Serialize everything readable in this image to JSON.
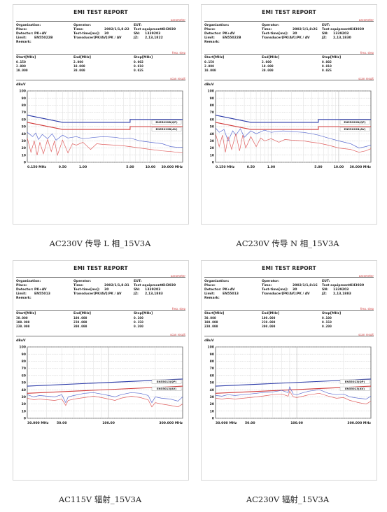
{
  "reports": [
    {
      "title": "EMI TEST REPORT",
      "tags": {
        "parameter": "parameter",
        "freq_step": "freq. step",
        "scan_result": "scan result"
      },
      "labels": {
        "organization": "Organization:",
        "operator": "Operator:",
        "eut": "EUT:",
        "place": "Place:",
        "time": "Time:",
        "test_equipment": "Test equipment:",
        "detector": "Detector:",
        "test_time": "Test-time[ms]:",
        "sn": "SN:",
        "limit": "Limit:",
        "transducer": "Transducer[PK/AV]:",
        "jz": "JZ:",
        "remark": "Remark:",
        "start": "Start[MHz]",
        "end": "End[MHz]",
        "step": "Step[MHz]",
        "unit": "dBuV"
      },
      "values": {
        "time": "2002/1/1,8:22",
        "test_equipment": "KH3939",
        "detector": "PK+AV",
        "test_time": "30",
        "sn": "1339203",
        "limit": "EN55022B",
        "transducer": "PK / AV",
        "jz": "2,13,1822"
      },
      "freq_table": [
        [
          "0.150",
          "2.000",
          "0.002"
        ],
        [
          "2.000",
          "10.000",
          "0.010"
        ],
        [
          "10.000",
          "30.000",
          "0.025"
        ]
      ],
      "chart_data": {
        "type": "line",
        "log_x": true,
        "x_range": [
          0.15,
          30
        ],
        "ylim": [
          0,
          100
        ],
        "y_ticks": [
          "100",
          "90",
          "80",
          "70",
          "60",
          "50",
          "40",
          "30",
          "20",
          "10",
          "0"
        ],
        "x_labels": [
          {
            "x": 0.15,
            "text": "0.150 MHz"
          },
          {
            "x": 0.5,
            "text": "0.50"
          },
          {
            "x": 1,
            "text": "1.00"
          },
          {
            "x": 5,
            "text": "5.00"
          },
          {
            "x": 10,
            "text": "10.00"
          },
          {
            "x": 30,
            "text": "30.000 MHz"
          }
        ],
        "legend": [
          "EN55022B(QP)",
          "EN55022B(AV)"
        ],
        "series": [
          {
            "role": "limit-qp",
            "color": "#2b3aa8",
            "x": [
              0.15,
              0.5,
              5,
              5,
              30
            ],
            "y": [
              66,
              56,
              56,
              60,
              60
            ]
          },
          {
            "role": "limit-av",
            "color": "#d23b3b",
            "x": [
              0.15,
              0.5,
              5,
              5,
              30
            ],
            "y": [
              56,
              46,
              46,
              50,
              50
            ]
          },
          {
            "role": "pk",
            "color": "#5a6ad0",
            "x": [
              0.15,
              0.18,
              0.2,
              0.22,
              0.25,
              0.3,
              0.35,
              0.4,
              0.5,
              0.6,
              0.8,
              1,
              1.5,
              2,
              3,
              4,
              5,
              7,
              10,
              15,
              20,
              25,
              30
            ],
            "y": [
              42,
              36,
              41,
              32,
              39,
              33,
              40,
              31,
              38,
              34,
              36,
              33,
              35,
              36,
              35,
              33,
              34,
              30,
              28,
              26,
              22,
              21,
              21
            ]
          },
          {
            "role": "av",
            "color": "#e06060",
            "x": [
              0.15,
              0.17,
              0.19,
              0.21,
              0.23,
              0.26,
              0.3,
              0.34,
              0.38,
              0.42,
              0.5,
              0.6,
              0.7,
              0.8,
              1,
              1.3,
              1.6,
              2,
              3,
              4,
              5,
              7,
              10,
              15,
              20,
              25,
              30
            ],
            "y": [
              34,
              14,
              30,
              10,
              28,
              12,
              32,
              15,
              30,
              10,
              31,
              13,
              26,
              24,
              28,
              18,
              26,
              25,
              24,
              23,
              22,
              20,
              18,
              16,
              15,
              14,
              13
            ]
          }
        ]
      }
    },
    {
      "title": "EMI TEST REPORT",
      "tags": {
        "parameter": "parameter",
        "freq_step": "freq. step",
        "scan_result": "scan result"
      },
      "labels": {
        "organization": "Organization:",
        "operator": "Operator:",
        "eut": "EUT:",
        "place": "Place:",
        "time": "Time:",
        "test_equipment": "Test equipment:",
        "detector": "Detector:",
        "test_time": "Test-time[ms]:",
        "sn": "SN:",
        "limit": "Limit:",
        "transducer": "Transducer[PK/AV]:",
        "jz": "JZ:",
        "remark": "Remark:",
        "start": "Start[MHz]",
        "end": "End[MHz]",
        "step": "Step[MHz]",
        "unit": "dBuV"
      },
      "values": {
        "time": "2002/1/1,8:26",
        "test_equipment": "KH3939",
        "detector": "PK+AV",
        "test_time": "30",
        "sn": "1339203",
        "limit": "EN55022B",
        "transducer": "PK / AV",
        "jz": "2,13,1830"
      },
      "freq_table": [
        [
          "0.150",
          "2.000",
          "0.002"
        ],
        [
          "2.000",
          "10.000",
          "0.010"
        ],
        [
          "10.000",
          "30.000",
          "0.025"
        ]
      ],
      "chart_data": {
        "type": "line",
        "log_x": true,
        "x_range": [
          0.15,
          30
        ],
        "ylim": [
          0,
          100
        ],
        "y_ticks": [
          "100",
          "90",
          "80",
          "70",
          "60",
          "50",
          "40",
          "30",
          "20",
          "10",
          "0"
        ],
        "x_labels": [
          {
            "x": 0.15,
            "text": "0.150 MHz"
          },
          {
            "x": 0.5,
            "text": "0.50"
          },
          {
            "x": 1,
            "text": "1.00"
          },
          {
            "x": 5,
            "text": "5.00"
          },
          {
            "x": 10,
            "text": "10.00"
          },
          {
            "x": 30,
            "text": "30.000 MHz"
          }
        ],
        "legend": [
          "EN55022B(QP)",
          "EN55022B(AV)"
        ],
        "series": [
          {
            "role": "limit-qp",
            "color": "#2b3aa8",
            "x": [
              0.15,
              0.5,
              5,
              5,
              30
            ],
            "y": [
              66,
              56,
              56,
              60,
              60
            ]
          },
          {
            "role": "limit-av",
            "color": "#d23b3b",
            "x": [
              0.15,
              0.5,
              5,
              5,
              30
            ],
            "y": [
              56,
              46,
              46,
              50,
              50
            ]
          },
          {
            "role": "pk",
            "color": "#5a6ad0",
            "x": [
              0.15,
              0.17,
              0.2,
              0.23,
              0.27,
              0.3,
              0.35,
              0.4,
              0.5,
              0.6,
              0.8,
              1,
              1.5,
              2,
              3,
              4,
              5,
              7,
              10,
              15,
              20,
              25,
              30
            ],
            "y": [
              48,
              42,
              46,
              30,
              44,
              38,
              47,
              35,
              44,
              40,
              45,
              42,
              44,
              43,
              42,
              40,
              38,
              34,
              30,
              26,
              20,
              22,
              24
            ]
          },
          {
            "role": "av",
            "color": "#e06060",
            "x": [
              0.15,
              0.17,
              0.19,
              0.21,
              0.23,
              0.26,
              0.3,
              0.34,
              0.38,
              0.42,
              0.5,
              0.6,
              0.7,
              0.8,
              1,
              1.3,
              1.6,
              2,
              3,
              4,
              5,
              7,
              10,
              15,
              20,
              25,
              30
            ],
            "y": [
              40,
              22,
              38,
              14,
              36,
              18,
              40,
              16,
              38,
              20,
              36,
              22,
              34,
              30,
              33,
              28,
              32,
              31,
              30,
              28,
              27,
              24,
              20,
              18,
              14,
              16,
              19
            ]
          }
        ]
      }
    },
    {
      "title": "EMI TEST REPORT",
      "tags": {
        "parameter": "parameter",
        "freq_step": "freq. step",
        "scan_result": "scan result"
      },
      "labels": {
        "organization": "Organization:",
        "operator": "Operator:",
        "eut": "EUT:",
        "place": "Place:",
        "time": "Time:",
        "test_equipment": "Test equipment:",
        "detector": "Detector:",
        "test_time": "Test-time[ms]:",
        "sn": "SN:",
        "limit": "Limit:",
        "transducer": "Transducer[PK/AV]:",
        "jz": "JZ:",
        "remark": "Remark:",
        "start": "Start[MHz]",
        "end": "End[MHz]",
        "step": "Step[MHz]",
        "unit": "dBuV"
      },
      "values": {
        "time": "2002/1/1,8:31",
        "test_equipment": "KH3939",
        "detector": "PK+AV",
        "test_time": "30",
        "sn": "1339203",
        "limit": "EN55013",
        "transducer": "PK / AV",
        "jz": "2,13,1883"
      },
      "freq_table": [
        [
          "30.000",
          "100.000",
          "0.100"
        ],
        [
          "100.000",
          "230.000",
          "0.150"
        ],
        [
          "230.000",
          "300.000",
          "0.200"
        ]
      ],
      "chart_data": {
        "type": "line",
        "log_x": true,
        "x_range": [
          30,
          300
        ],
        "ylim": [
          0,
          100
        ],
        "y_ticks": [
          "100",
          "90",
          "80",
          "70",
          "60",
          "50",
          "40",
          "30",
          "20",
          "10",
          "0"
        ],
        "x_labels": [
          {
            "x": 30,
            "text": "30.000 MHz"
          },
          {
            "x": 50,
            "text": "50.00"
          },
          {
            "x": 100,
            "text": "100.00"
          },
          {
            "x": 300,
            "text": "300.000 MHz"
          }
        ],
        "legend": [
          "EN55013(QP)",
          "EN55013(AV)"
        ],
        "series": [
          {
            "role": "limit-qp",
            "color": "#2b3aa8",
            "x": [
              30,
              300
            ],
            "y": [
              45,
              55
            ]
          },
          {
            "role": "limit-av",
            "color": "#d23b3b",
            "x": [
              30,
              300
            ],
            "y": [
              35,
              45
            ]
          },
          {
            "role": "pk",
            "color": "#5a6ad0",
            "x": [
              30,
              33,
              36,
              40,
              45,
              50,
              53,
              55,
              60,
              70,
              80,
              90,
              100,
              110,
              120,
              140,
              160,
              180,
              190,
              200,
              220,
              250,
              280,
              300
            ],
            "y": [
              33,
              30,
              32,
              31,
              30,
              33,
              22,
              30,
              32,
              35,
              36,
              34,
              32,
              30,
              33,
              36,
              35,
              32,
              22,
              30,
              28,
              27,
              24,
              30
            ]
          },
          {
            "role": "av",
            "color": "#e06060",
            "x": [
              30,
              33,
              36,
              40,
              45,
              50,
              53,
              55,
              60,
              70,
              80,
              90,
              100,
              110,
              120,
              140,
              160,
              180,
              190,
              200,
              220,
              250,
              280,
              300
            ],
            "y": [
              28,
              26,
              27,
              26,
              25,
              27,
              18,
              25,
              27,
              29,
              31,
              29,
              27,
              25,
              28,
              31,
              29,
              26,
              16,
              22,
              20,
              18,
              16,
              20
            ]
          }
        ]
      }
    },
    {
      "title": "EMI TEST REPORT",
      "tags": {
        "parameter": "parameter",
        "freq_step": "freq. step",
        "scan_result": "scan result"
      },
      "labels": {
        "organization": "Organization:",
        "operator": "Operator:",
        "eut": "EUT:",
        "place": "Place:",
        "time": "Time:",
        "test_equipment": "Test equipment:",
        "detector": "Detector:",
        "test_time": "Test-time[ms]:",
        "sn": "SN:",
        "limit": "Limit:",
        "transducer": "Transducer[PK/AV]:",
        "jz": "JZ:",
        "remark": "Remark:",
        "start": "Start[MHz]",
        "end": "End[MHz]",
        "step": "Step[MHz]",
        "unit": "dBuV"
      },
      "values": {
        "time": "2002/1/1,8:16",
        "test_equipment": "KH3939",
        "detector": "PK+AV",
        "test_time": "30",
        "sn": "1339203",
        "limit": "EN55013",
        "transducer": "PK / AV",
        "jz": "2,13,1883"
      },
      "freq_table": [
        [
          "30.000",
          "100.000",
          "0.100"
        ],
        [
          "100.000",
          "230.000",
          "0.150"
        ],
        [
          "230.000",
          "300.000",
          "0.200"
        ]
      ],
      "chart_data": {
        "type": "line",
        "log_x": true,
        "x_range": [
          30,
          300
        ],
        "ylim": [
          0,
          100
        ],
        "y_ticks": [
          "100",
          "90",
          "80",
          "70",
          "60",
          "50",
          "40",
          "30",
          "20",
          "10",
          "0"
        ],
        "x_labels": [
          {
            "x": 30,
            "text": "30.000 MHz"
          },
          {
            "x": 50,
            "text": "50.00"
          },
          {
            "x": 100,
            "text": "100.00"
          },
          {
            "x": 300,
            "text": "300.000 MHz"
          }
        ],
        "legend": [
          "EN55013(QP)",
          "EN55013(AV)"
        ],
        "series": [
          {
            "role": "limit-qp",
            "color": "#2b3aa8",
            "x": [
              30,
              300
            ],
            "y": [
              45,
              55
            ]
          },
          {
            "role": "limit-av",
            "color": "#d23b3b",
            "x": [
              30,
              300
            ],
            "y": [
              35,
              45
            ]
          },
          {
            "role": "pk",
            "color": "#5a6ad0",
            "x": [
              30,
              33,
              36,
              40,
              45,
              50,
              55,
              60,
              70,
              80,
              88,
              90,
              95,
              100,
              110,
              120,
              140,
              160,
              180,
              200,
              220,
              250,
              280,
              300
            ],
            "y": [
              32,
              31,
              33,
              32,
              33,
              34,
              35,
              36,
              37,
              39,
              36,
              44,
              34,
              33,
              36,
              38,
              40,
              35,
              33,
              34,
              30,
              28,
              27,
              31
            ]
          },
          {
            "role": "av",
            "color": "#e06060",
            "x": [
              30,
              33,
              36,
              40,
              45,
              50,
              55,
              60,
              70,
              80,
              88,
              90,
              95,
              100,
              110,
              120,
              140,
              160,
              180,
              200,
              220,
              250,
              280,
              300
            ],
            "y": [
              28,
              27,
              28,
              27,
              28,
              29,
              30,
              31,
              33,
              34,
              31,
              38,
              30,
              29,
              31,
              33,
              35,
              31,
              28,
              29,
              25,
              22,
              20,
              24
            ]
          }
        ]
      }
    }
  ],
  "captions": [
    "AC230V 传导 L 相_15V3A",
    "AC230V 传导 N 相_15V3A",
    "AC115V 辐射_15V3A",
    "AC230V 辐射_15V3A"
  ]
}
